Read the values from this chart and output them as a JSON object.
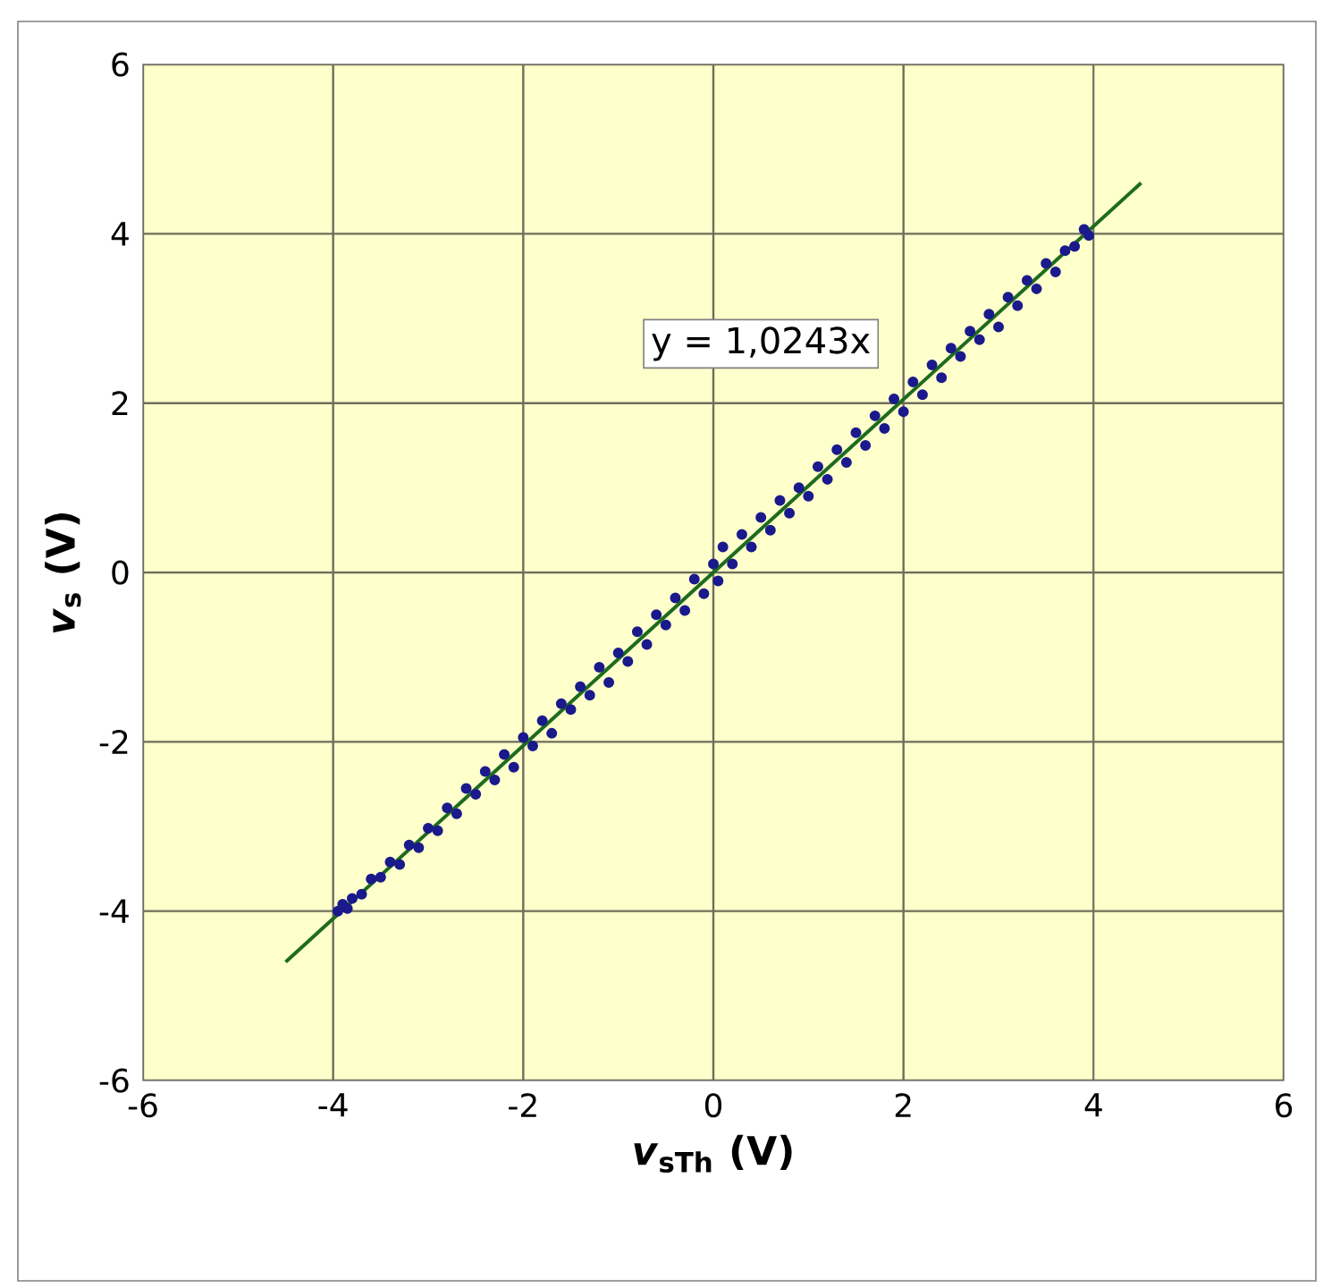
{
  "chart_data": {
    "type": "scatter",
    "xlabel": "*v*$_{sTh}$ (V)",
    "ylabel": "*v*$_{s}$ (V)",
    "xlim": [
      -6,
      6
    ],
    "ylim": [
      -6,
      6
    ],
    "xticks": [
      -6,
      -4,
      -2,
      0,
      2,
      4,
      6
    ],
    "yticks": [
      -6,
      -4,
      -2,
      0,
      2,
      4,
      6
    ],
    "grid": true,
    "annotations": [
      "y = 1,0243x"
    ],
    "series": [
      {
        "type": "scatter",
        "marker": "circle",
        "color": "#1a1a8c",
        "x": [
          -3.95,
          -3.9,
          -3.85,
          -3.8,
          -3.7,
          -3.6,
          -3.5,
          -3.4,
          -3.3,
          -3.2,
          -3.1,
          -3.0,
          -2.9,
          -2.8,
          -2.7,
          -2.6,
          -2.5,
          -2.4,
          -2.3,
          -2.2,
          -2.1,
          -2.0,
          -1.9,
          -1.8,
          -1.7,
          -1.6,
          -1.5,
          -1.4,
          -1.3,
          -1.2,
          -1.1,
          -1.0,
          -0.9,
          -0.8,
          -0.7,
          -0.6,
          -0.5,
          -0.4,
          -0.3,
          -0.2,
          -0.1,
          0.0,
          0.05,
          0.1,
          0.2,
          0.3,
          0.4,
          0.5,
          0.6,
          0.7,
          0.8,
          0.9,
          1.0,
          1.1,
          1.2,
          1.3,
          1.4,
          1.5,
          1.6,
          1.7,
          1.8,
          1.9,
          2.0,
          2.1,
          2.2,
          2.3,
          2.4,
          2.5,
          2.6,
          2.7,
          2.8,
          2.9,
          3.0,
          3.1,
          3.2,
          3.3,
          3.4,
          3.5,
          3.6,
          3.7,
          3.8,
          3.9,
          3.95
        ],
        "values": [
          -4.0,
          -3.92,
          -3.97,
          -3.85,
          -3.8,
          -3.62,
          -3.6,
          -3.42,
          -3.45,
          -3.22,
          -3.25,
          -3.02,
          -3.05,
          -2.78,
          -2.85,
          -2.55,
          -2.62,
          -2.35,
          -2.45,
          -2.15,
          -2.3,
          -1.95,
          -2.05,
          -1.75,
          -1.9,
          -1.55,
          -1.62,
          -1.35,
          -1.45,
          -1.12,
          -1.3,
          -0.95,
          -1.05,
          -0.7,
          -0.85,
          -0.5,
          -0.62,
          -0.3,
          -0.45,
          -0.08,
          -0.25,
          0.1,
          -0.1,
          0.3,
          0.1,
          0.45,
          0.3,
          0.65,
          0.5,
          0.85,
          0.7,
          1.0,
          0.9,
          1.25,
          1.1,
          1.45,
          1.3,
          1.65,
          1.5,
          1.85,
          1.7,
          2.05,
          1.9,
          2.25,
          2.1,
          2.45,
          2.3,
          2.65,
          2.55,
          2.85,
          2.75,
          3.05,
          2.9,
          3.25,
          3.15,
          3.45,
          3.35,
          3.65,
          3.55,
          3.8,
          3.85,
          4.05,
          3.98
        ]
      },
      {
        "type": "line",
        "color": "#1e6b1e",
        "marker": "none",
        "x": [
          -4.5,
          4.5
        ],
        "values": [
          -4.6,
          4.6
        ]
      }
    ]
  }
}
